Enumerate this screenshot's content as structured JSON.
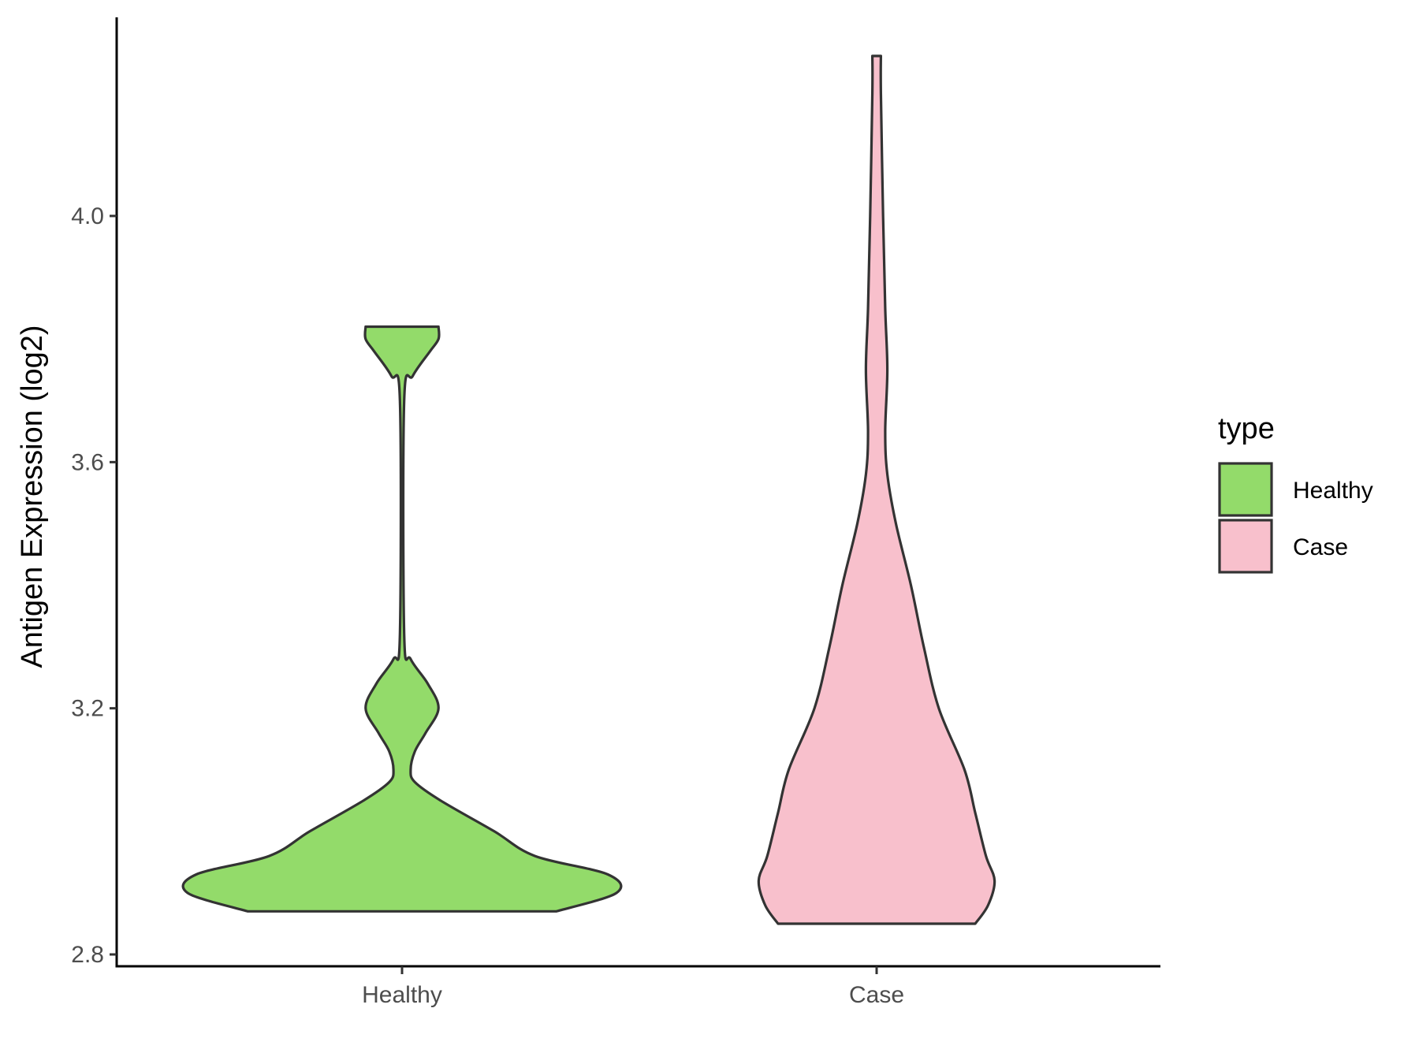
{
  "chart_data": {
    "type": "violin",
    "xlabel": "",
    "ylabel": "Antigen Expression (log2)",
    "ylim": [
      2.78,
      4.34
    ],
    "yticks": [
      "2.8",
      "3.2",
      "3.6",
      "4.0"
    ],
    "grid": false,
    "legend_position": "right",
    "legend": {
      "title": "type",
      "items": [
        "Healthy",
        "Case"
      ]
    },
    "categories": [
      "Healthy",
      "Case"
    ],
    "series": [
      {
        "name": "Healthy",
        "color": "#93db6a",
        "min": 2.87,
        "max": 3.82,
        "density": [
          [
            2.87,
            0.72
          ],
          [
            2.9,
            1.0
          ],
          [
            2.93,
            0.96
          ],
          [
            2.96,
            0.62
          ],
          [
            3.0,
            0.43
          ],
          [
            3.05,
            0.18
          ],
          [
            3.08,
            0.06
          ],
          [
            3.1,
            0.04
          ],
          [
            3.13,
            0.06
          ],
          [
            3.16,
            0.11
          ],
          [
            3.2,
            0.17
          ],
          [
            3.24,
            0.12
          ],
          [
            3.28,
            0.04
          ],
          [
            3.32,
            0.01
          ],
          [
            3.7,
            0.01
          ],
          [
            3.74,
            0.05
          ],
          [
            3.78,
            0.13
          ],
          [
            3.8,
            0.17
          ],
          [
            3.82,
            0.17
          ]
        ]
      },
      {
        "name": "Case",
        "color": "#f8c0cc",
        "min": 2.85,
        "max": 4.26,
        "density": [
          [
            2.85,
            0.46
          ],
          [
            2.88,
            0.52
          ],
          [
            2.92,
            0.55
          ],
          [
            2.96,
            0.51
          ],
          [
            3.03,
            0.46
          ],
          [
            3.1,
            0.41
          ],
          [
            3.2,
            0.29
          ],
          [
            3.3,
            0.22
          ],
          [
            3.4,
            0.16
          ],
          [
            3.5,
            0.09
          ],
          [
            3.58,
            0.05
          ],
          [
            3.65,
            0.04
          ],
          [
            3.75,
            0.05
          ],
          [
            3.85,
            0.04
          ],
          [
            4.0,
            0.03
          ],
          [
            4.2,
            0.02
          ],
          [
            4.26,
            0.02
          ]
        ]
      }
    ]
  }
}
